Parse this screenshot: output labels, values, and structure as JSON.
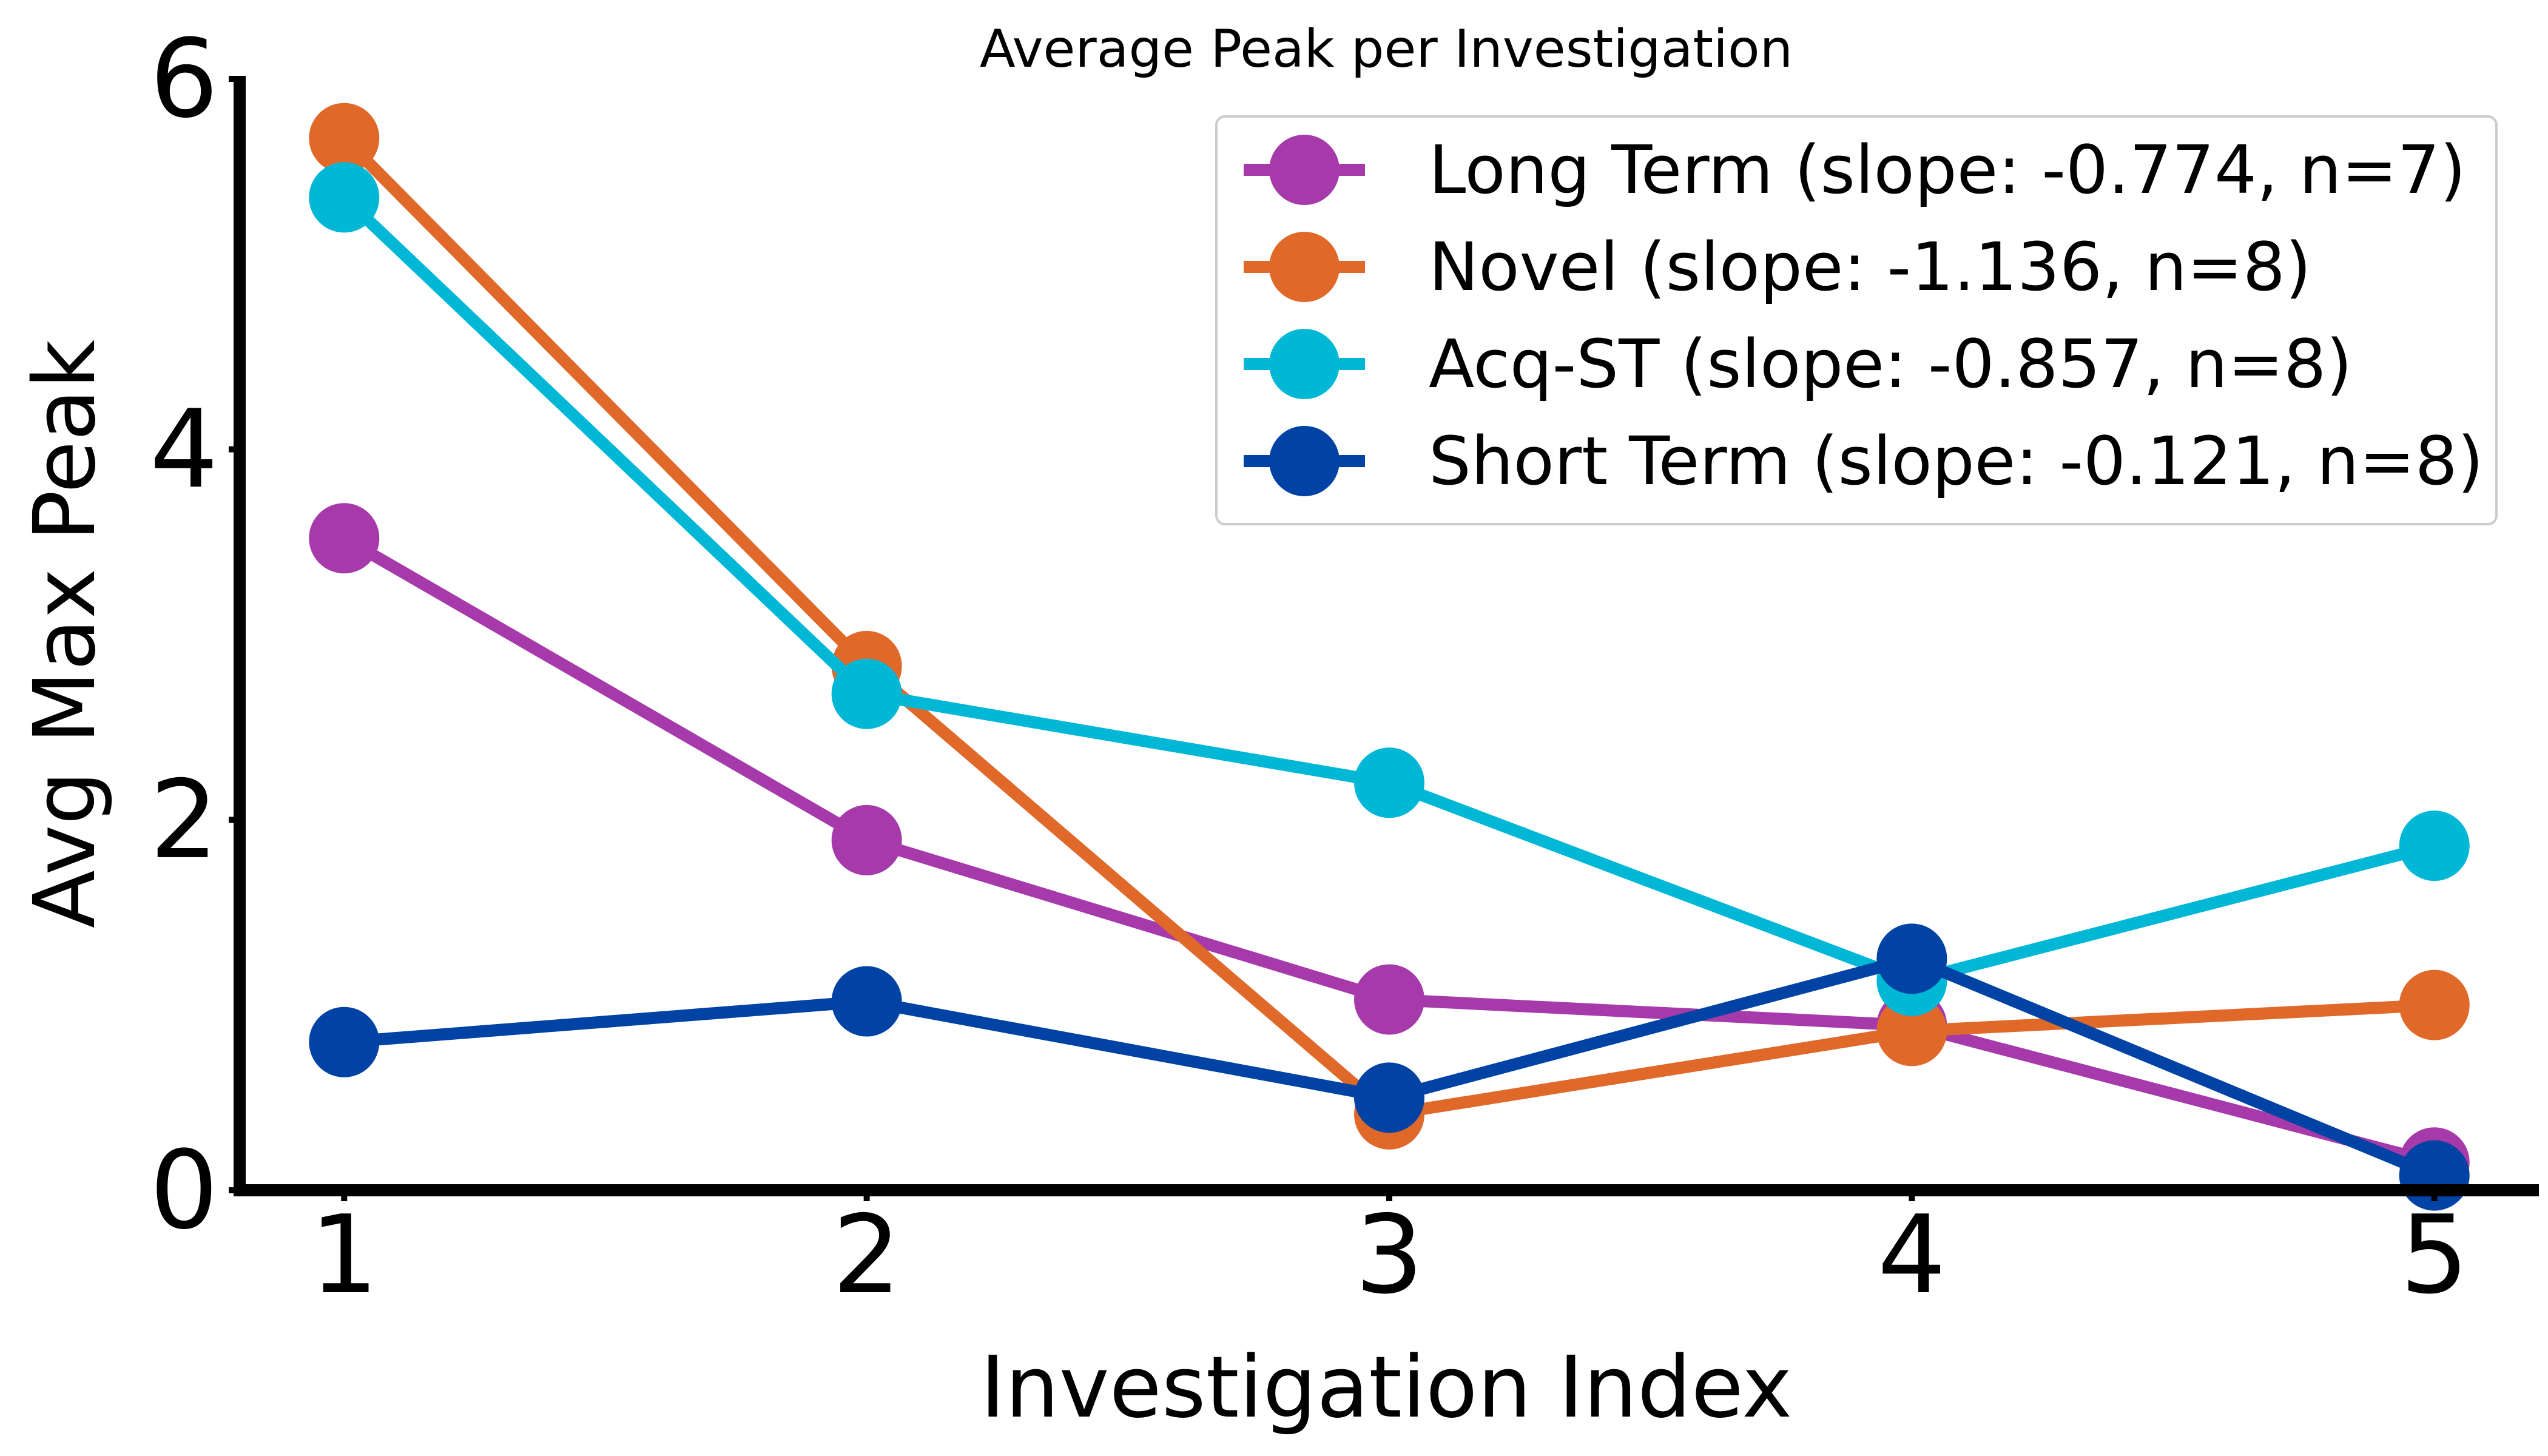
{
  "chart_data": {
    "type": "line",
    "title": "Average Peak per Investigation",
    "xlabel": "Investigation Index",
    "ylabel": "Avg Max Peak",
    "x": [
      1,
      2,
      3,
      4,
      5
    ],
    "xlim": [
      0.8,
      5.2
    ],
    "ylim": [
      0,
      6
    ],
    "xticks": [
      "1",
      "2",
      "3",
      "4",
      "5"
    ],
    "yticks": [
      "0",
      "2",
      "4",
      "6"
    ],
    "grid": false,
    "legend_position": "top-right",
    "series": [
      {
        "name": "Long Term (slope: -0.774, n=7)",
        "color": "#A63AAA",
        "values": [
          3.52,
          1.89,
          1.03,
          0.89,
          0.15
        ]
      },
      {
        "name": "Novel (slope: -1.136, n=8)",
        "color": "#E0692A",
        "values": [
          5.68,
          2.83,
          0.41,
          0.86,
          1.0
        ]
      },
      {
        "name": "Acq-ST (slope: -0.857, n=8)",
        "color": "#00B7D6",
        "values": [
          5.36,
          2.68,
          2.2,
          1.13,
          1.86
        ]
      },
      {
        "name": "Short Term (slope: -0.121, n=8)",
        "color": "#0043A5",
        "values": [
          0.8,
          1.02,
          0.5,
          1.25,
          0.08
        ]
      }
    ]
  }
}
